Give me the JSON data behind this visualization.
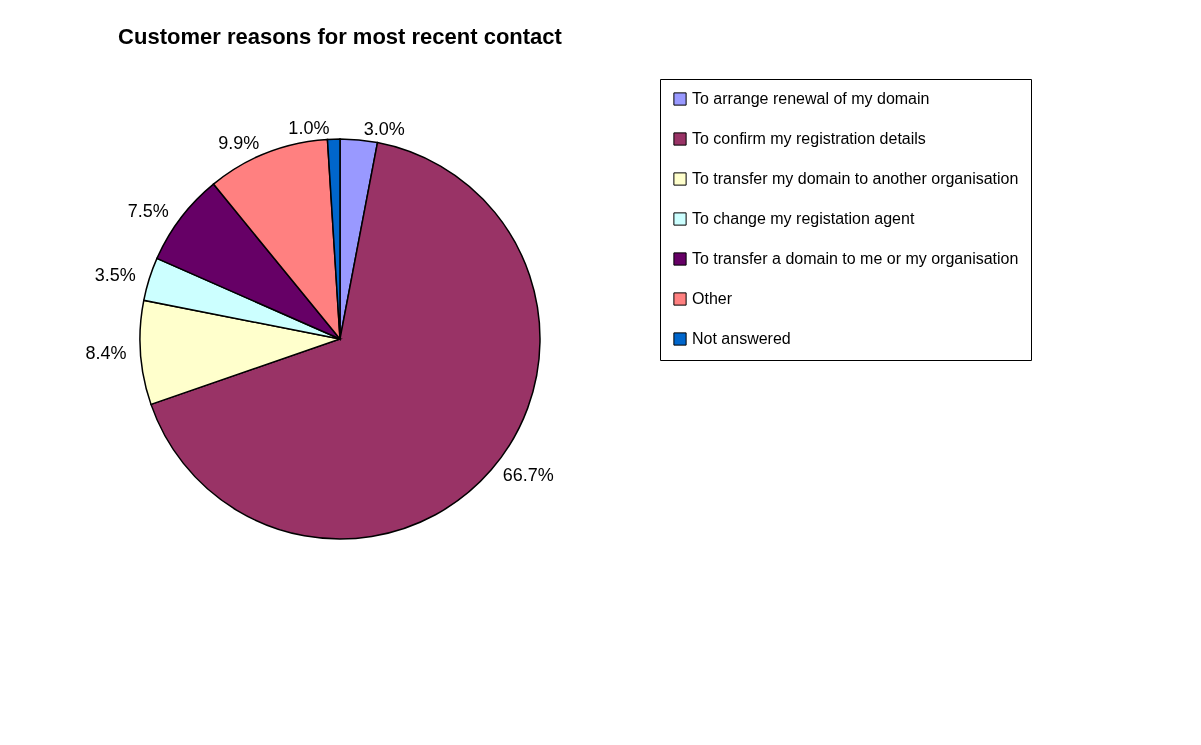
{
  "chart_data": {
    "type": "pie",
    "title": "Customer reasons for most recent contact",
    "categories": [
      "To arrange renewal of my domain",
      "To confirm my registration details",
      "To transfer my domain to another organisation",
      "To change my registation agent",
      "To transfer a domain to me or my organisation",
      "Other",
      "Not answered"
    ],
    "values": [
      3.0,
      66.7,
      8.4,
      3.5,
      7.5,
      9.9,
      1.0
    ],
    "value_labels": [
      "3.0%",
      "66.7%",
      "8.4%",
      "3.5%",
      "7.5%",
      "9.9%",
      "1.0%"
    ],
    "colors": [
      "#9999ff",
      "#993366",
      "#ffffcc",
      "#ccffff",
      "#660066",
      "#ff8080",
      "#0066cc"
    ],
    "legend": "right"
  }
}
